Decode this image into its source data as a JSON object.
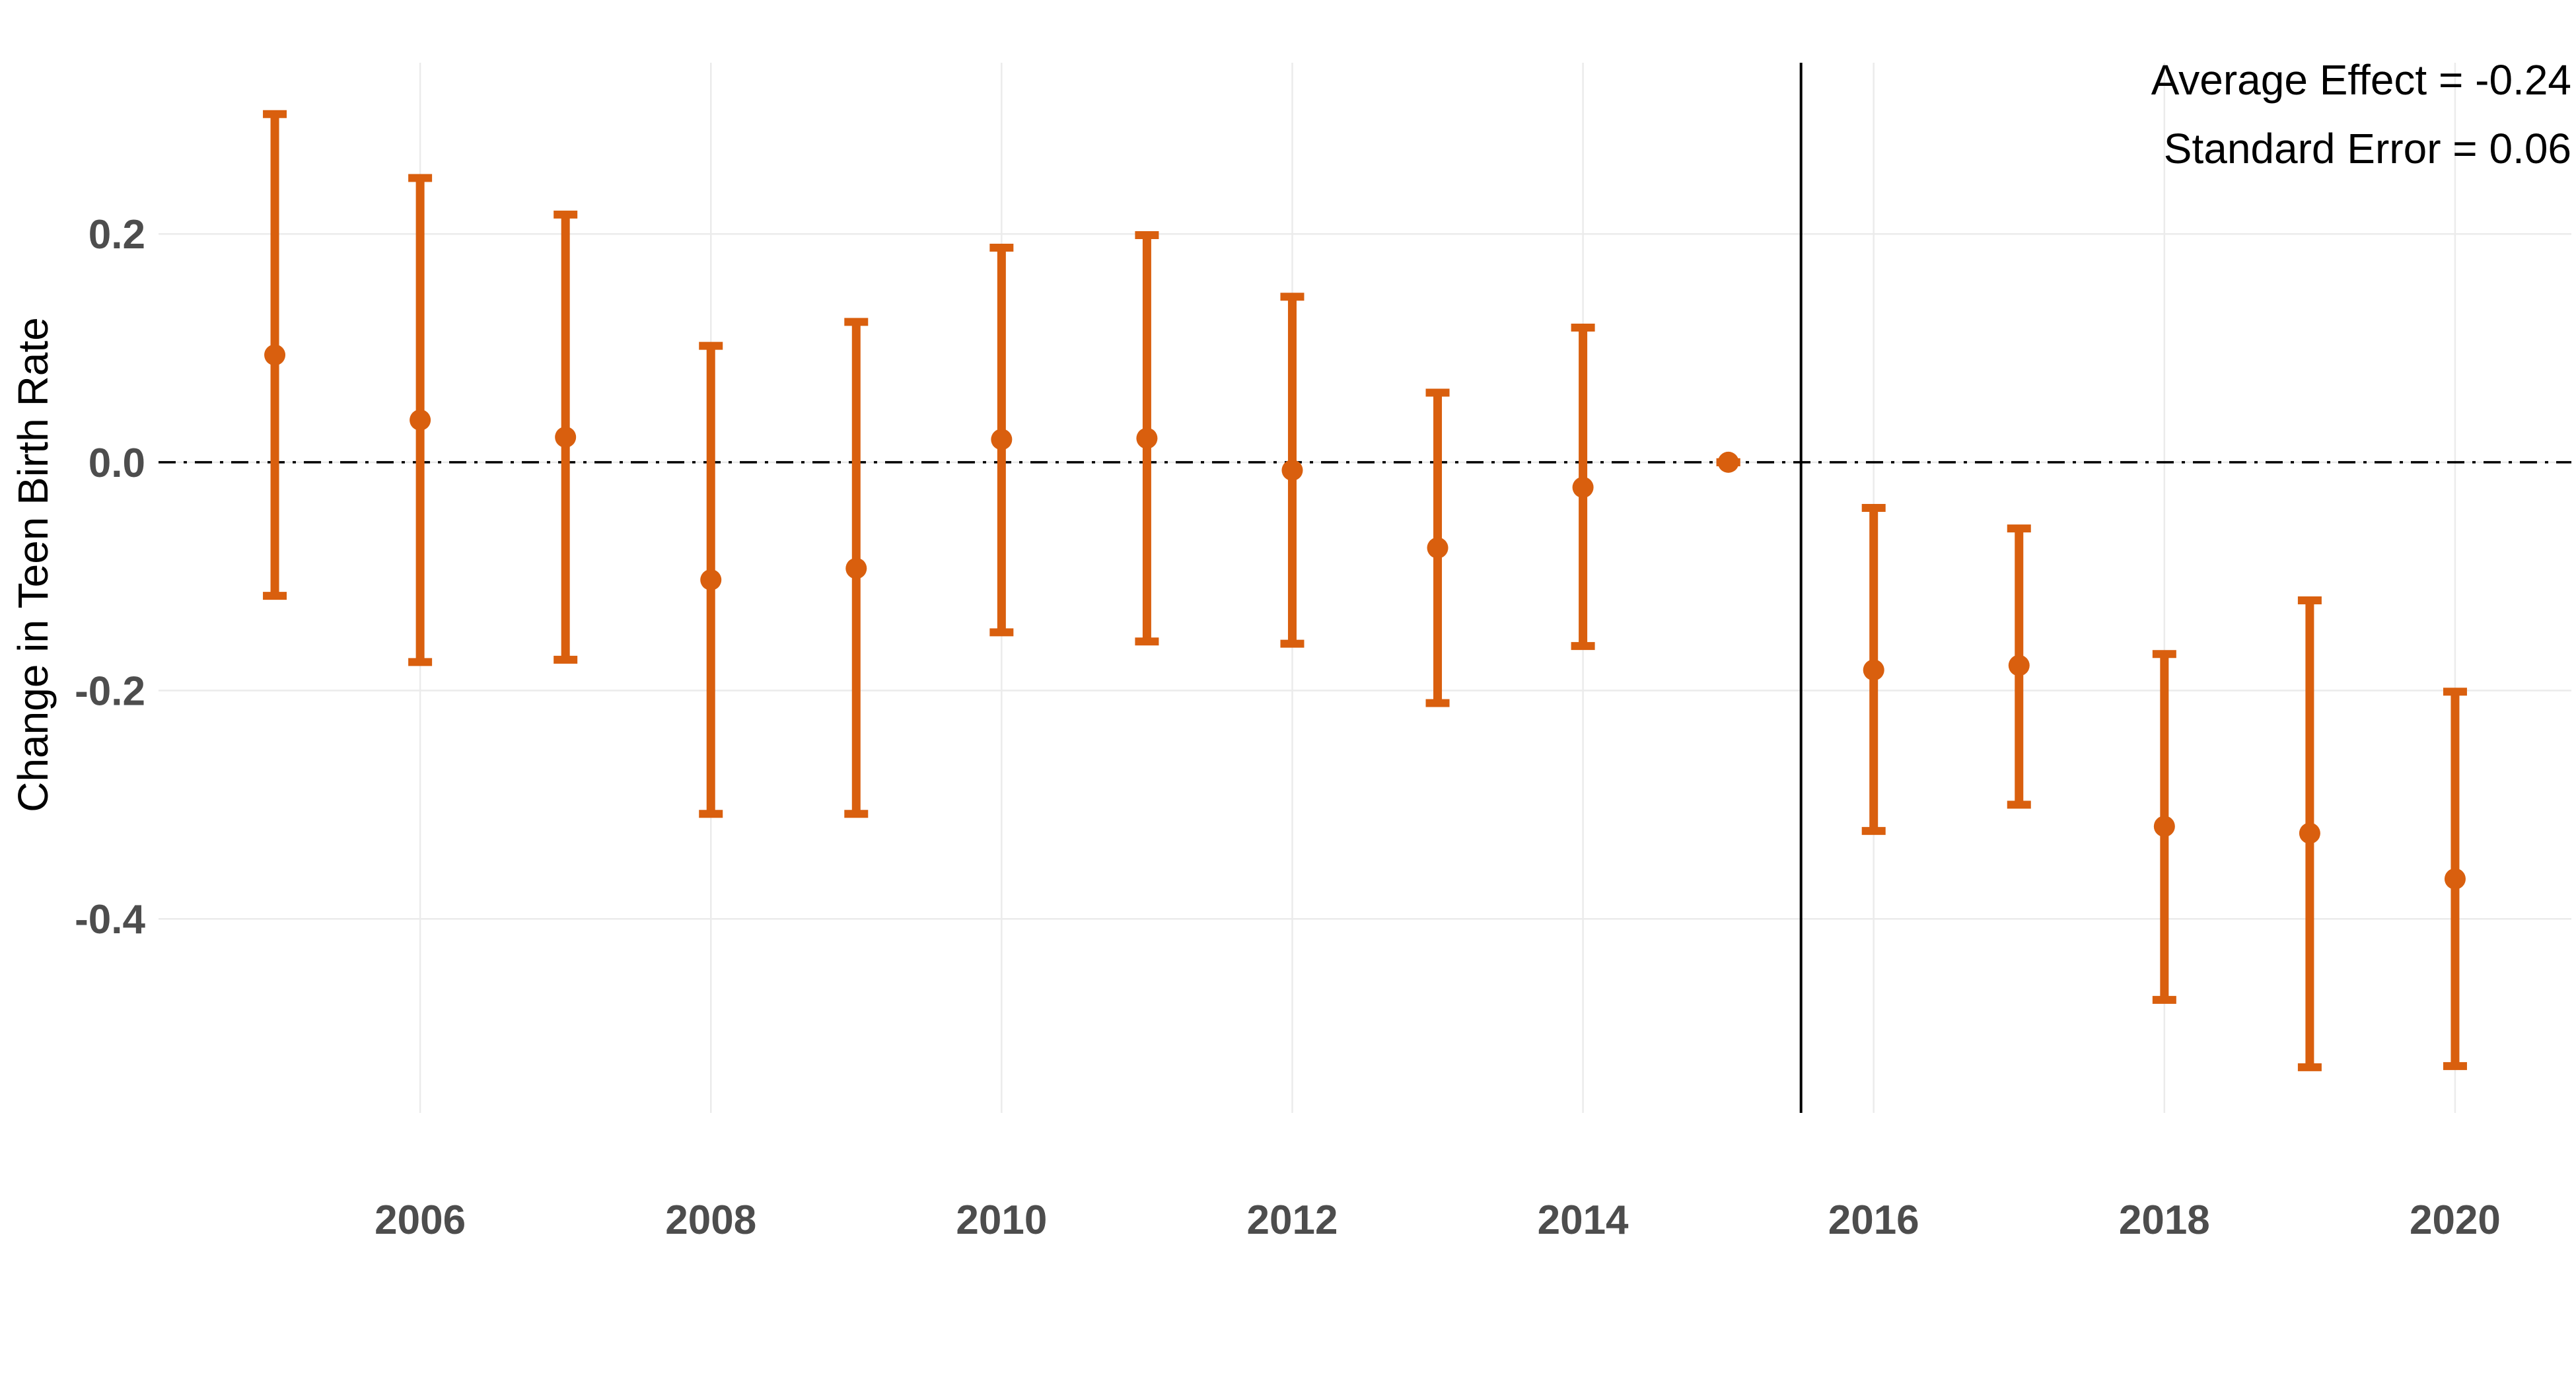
{
  "chart_data": {
    "type": "scatter",
    "subtype": "event-study point estimates with error bars",
    "title": "",
    "xlabel": "",
    "ylabel": "Change in Teen Birth Rate",
    "xlim": [
      2004.2,
      2020.8
    ],
    "ylim": [
      -0.57,
      0.35
    ],
    "x_ticks": [
      2006,
      2008,
      2010,
      2012,
      2014,
      2016,
      2018,
      2020
    ],
    "x_tick_labels": [
      "2006",
      "2008",
      "2010",
      "2012",
      "2014",
      "2016",
      "2018",
      "2020"
    ],
    "y_ticks": [
      -0.4,
      -0.2,
      0.0,
      0.2
    ],
    "y_tick_labels": [
      "-0.4",
      "-0.2",
      "0.0",
      "0.2"
    ],
    "grid": true,
    "reference_hline": {
      "y": 0.0,
      "style": "dash-dot"
    },
    "reference_vline": {
      "x": 2015.5,
      "style": "solid"
    },
    "series": [
      {
        "color": "#d95f0e",
        "points": [
          {
            "x": 2005,
            "y": 0.094,
            "lower": -0.117,
            "upper": 0.305
          },
          {
            "x": 2006,
            "y": 0.037,
            "lower": -0.175,
            "upper": 0.249
          },
          {
            "x": 2007,
            "y": 0.022,
            "lower": -0.173,
            "upper": 0.217
          },
          {
            "x": 2008,
            "y": -0.103,
            "lower": -0.308,
            "upper": 0.102
          },
          {
            "x": 2009,
            "y": -0.093,
            "lower": -0.308,
            "upper": 0.123
          },
          {
            "x": 2010,
            "y": 0.02,
            "lower": -0.149,
            "upper": 0.188
          },
          {
            "x": 2011,
            "y": 0.021,
            "lower": -0.157,
            "upper": 0.199
          },
          {
            "x": 2012,
            "y": -0.007,
            "lower": -0.159,
            "upper": 0.145
          },
          {
            "x": 2013,
            "y": -0.075,
            "lower": -0.211,
            "upper": 0.061
          },
          {
            "x": 2014,
            "y": -0.022,
            "lower": -0.161,
            "upper": 0.118
          },
          {
            "x": 2015,
            "y": 0.0,
            "lower": 0.0,
            "upper": 0.0
          },
          {
            "x": 2016,
            "y": -0.182,
            "lower": -0.323,
            "upper": -0.04
          },
          {
            "x": 2017,
            "y": -0.178,
            "lower": -0.3,
            "upper": -0.058
          },
          {
            "x": 2018,
            "y": -0.319,
            "lower": -0.471,
            "upper": -0.168
          },
          {
            "x": 2019,
            "y": -0.325,
            "lower": -0.53,
            "upper": -0.121
          },
          {
            "x": 2020,
            "y": -0.365,
            "lower": -0.529,
            "upper": -0.201
          }
        ]
      }
    ],
    "annotations": [
      {
        "text": "Average Effect = -0.24",
        "position": "top-right"
      },
      {
        "text": "Standard Error = 0.06",
        "position": "top-right"
      }
    ]
  }
}
